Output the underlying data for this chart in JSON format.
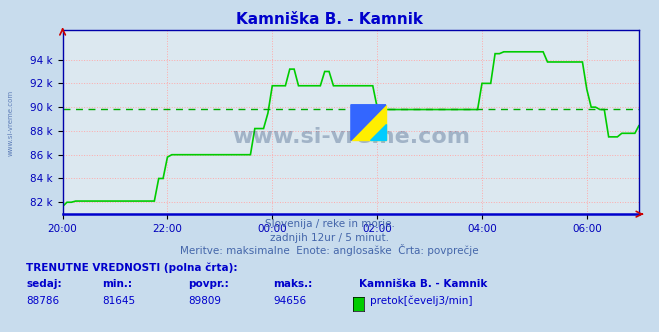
{
  "title": "Kamniška B. - Kamnik",
  "bg_color": "#c8dced",
  "plot_bg_color": "#dce8f0",
  "line_color": "#00cc00",
  "avg_value": 89809,
  "ymin": 81000,
  "ymax": 96500,
  "yticks": [
    82000,
    84000,
    86000,
    88000,
    90000,
    92000,
    94000
  ],
  "ytick_labels": [
    "82 k",
    "84 k",
    "86 k",
    "88 k",
    "90 k",
    "92 k",
    "94 k"
  ],
  "xtick_pos": [
    0,
    120,
    240,
    360,
    480,
    600
  ],
  "xtick_labels": [
    "20:00",
    "22:00",
    "00:00",
    "02:00",
    "04:00",
    "06:00"
  ],
  "grid_color": "#ffaaaa",
  "subtitle1": "Slovenija / reke in morje.",
  "subtitle2": "zadnjih 12ur / 5 minut.",
  "subtitle3": "Meritve: maksimalne  Enote: anglosaške  Črta: povprečje",
  "footer_label": "TRENUTNE VREDNOSTI (polna črta):",
  "col_sedaj": "sedaj:",
  "col_min": "min.:",
  "col_povpr": "povpr.:",
  "col_maks": "maks.:",
  "val_sedaj": "88786",
  "val_min": "81645",
  "val_povpr": "89809",
  "val_maks": "94656",
  "legend_label": "pretok[čevelj3/min]",
  "legend_color": "#00cc00",
  "station_label": "Kamniška B. - Kamnik",
  "watermark": "www.si-vreme.com"
}
